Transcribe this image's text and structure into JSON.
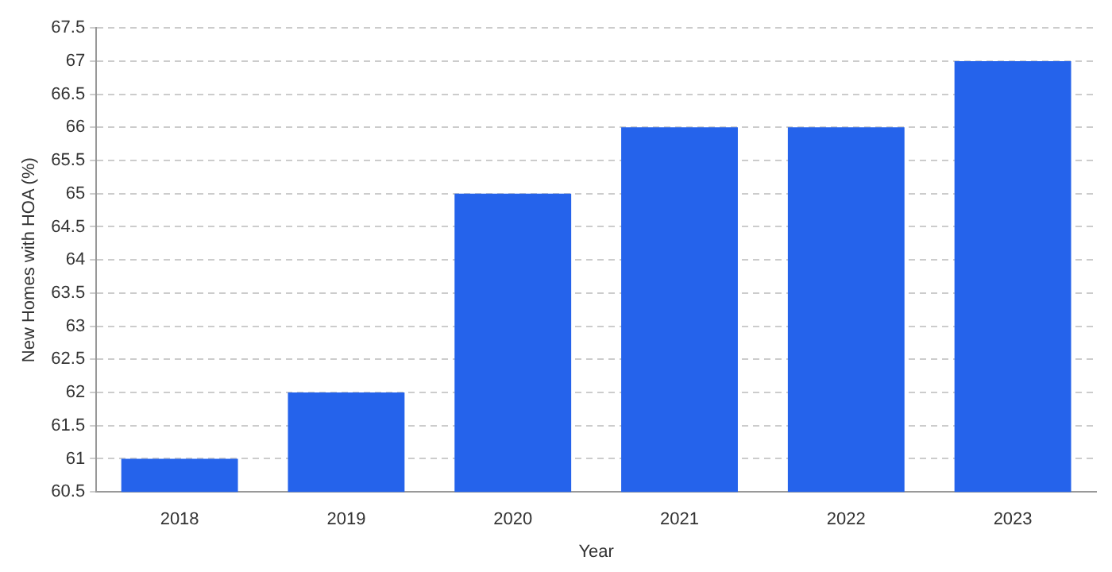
{
  "chart_data": {
    "type": "bar",
    "xlabel": "Year",
    "ylabel": "New Homes with HOA (%)",
    "categories": [
      "2018",
      "2019",
      "2020",
      "2021",
      "2022",
      "2023"
    ],
    "series": [
      {
        "color": "#2563eb",
        "values": [
          61,
          62,
          65,
          66,
          66,
          67
        ]
      }
    ],
    "ylim": [
      60.5,
      67.5
    ],
    "yticks": [
      60.5,
      61,
      61.5,
      62,
      62.5,
      63,
      63.5,
      64,
      64.5,
      65,
      65.5,
      66,
      66.5,
      67,
      67.5
    ],
    "grid": "y",
    "legend": false
  }
}
